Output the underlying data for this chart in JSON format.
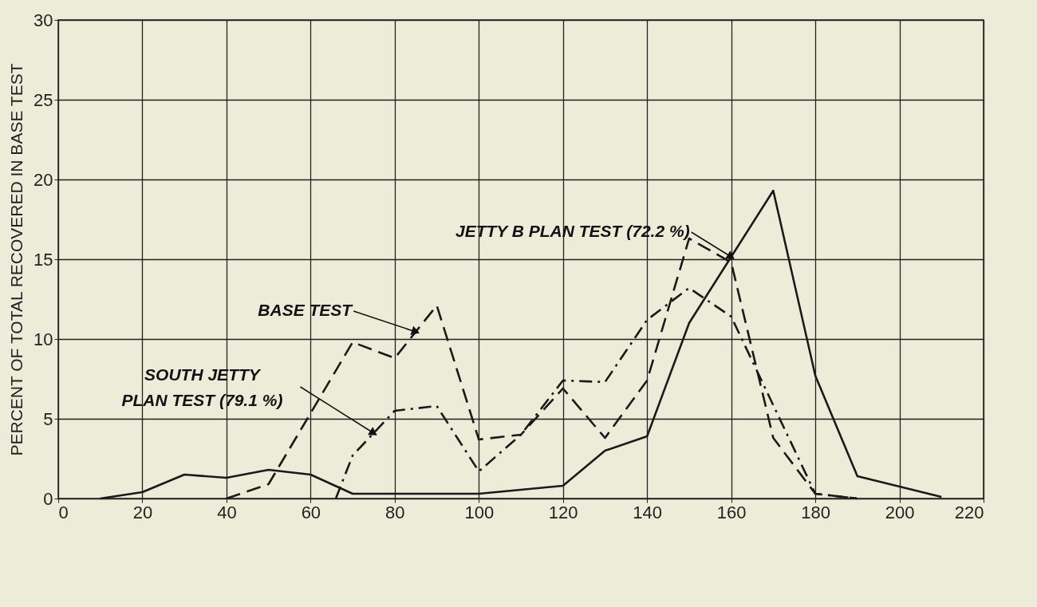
{
  "chart_data": {
    "type": "line",
    "ylabel": "PERCENT OF TOTAL RECOVERED IN BASE TEST",
    "xlim": [
      0,
      220
    ],
    "xticks": [
      0,
      20,
      40,
      60,
      80,
      100,
      120,
      140,
      160,
      180,
      200,
      220
    ],
    "ylim": [
      0,
      30
    ],
    "yticks": [
      0,
      5,
      10,
      15,
      20,
      25,
      30
    ],
    "grid": true,
    "marker": "none",
    "series": [
      {
        "color": "#1a1a1a",
        "line_style": "solid",
        "x": [
          10,
          20,
          30,
          40,
          50,
          60,
          70,
          100,
          120,
          130,
          140,
          150,
          170,
          180,
          190,
          210
        ],
        "values": [
          0,
          0.4,
          1.5,
          1.3,
          1.8,
          1.5,
          0.3,
          0.3,
          0.8,
          3,
          3.9,
          11,
          19.3,
          7.7,
          1.4,
          0.1
        ]
      },
      {
        "color": "#1a1a1a",
        "line_style": "dashed",
        "x": [
          40,
          50,
          70,
          80,
          90,
          100,
          110,
          120,
          130,
          140,
          150,
          160,
          170,
          180,
          190
        ],
        "values": [
          0,
          0.9,
          9.8,
          8.8,
          12.1,
          3.7,
          4,
          6.9,
          3.8,
          7.4,
          16.3,
          14.8,
          3.8,
          0.3,
          0
        ]
      },
      {
        "color": "#1a1a1a",
        "line_style": "dashdot",
        "x": [
          66,
          70,
          80,
          90,
          100,
          110,
          120,
          130,
          140,
          150,
          160,
          180,
          190
        ],
        "values": [
          0,
          2.7,
          5.5,
          5.8,
          1.7,
          4,
          7.4,
          7.3,
          11.2,
          13.2,
          11.4,
          0.3,
          0
        ]
      }
    ],
    "annotations": [
      {
        "text": "JETTY B PLAN TEST (72.2 %)",
        "x": 160,
        "y": 15.15
      },
      {
        "text": "BASE TEST",
        "x": 85,
        "y": 10.45
      },
      {
        "text": "SOUTH JETTY\nPLAN TEST (79.1 %)",
        "x": 75,
        "y": 4.1
      }
    ]
  }
}
